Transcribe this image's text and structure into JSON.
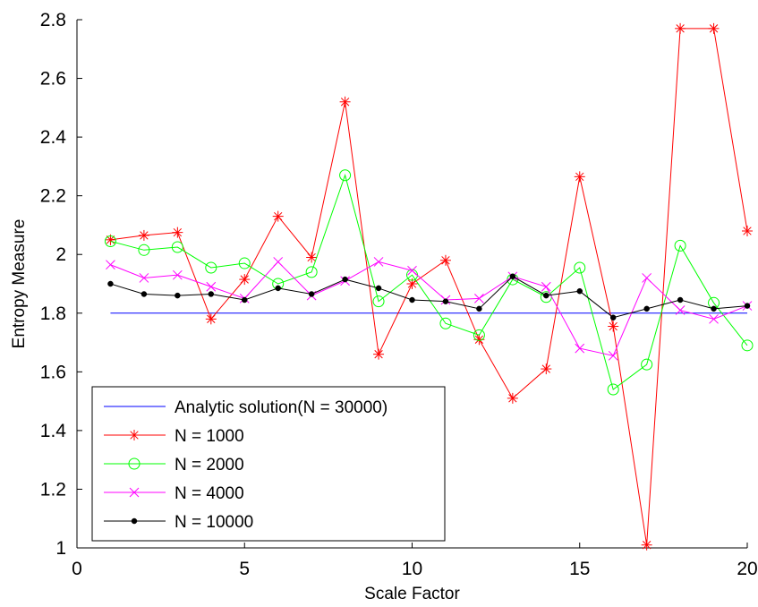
{
  "chart_data": {
    "type": "line",
    "title": "",
    "xlabel": "Scale Factor",
    "ylabel": "Entropy Measure",
    "xlim": [
      0,
      20
    ],
    "ylim": [
      1,
      2.8
    ],
    "x_ticks": [
      0,
      5,
      10,
      15,
      20
    ],
    "y_ticks": [
      1,
      1.2,
      1.4,
      1.6,
      1.8,
      2,
      2.2,
      2.4,
      2.6,
      2.8
    ],
    "x_tick_labels": [
      "0",
      "5",
      "10",
      "15",
      "20"
    ],
    "y_tick_labels": [
      "1",
      "1.2",
      "1.4",
      "1.6",
      "1.8",
      "2",
      "2.2",
      "2.4",
      "2.6",
      "2.8"
    ],
    "grid": false,
    "legend_position": "bottom-left",
    "x": [
      1,
      2,
      3,
      4,
      5,
      6,
      7,
      8,
      9,
      10,
      11,
      12,
      13,
      14,
      15,
      16,
      17,
      18,
      19,
      20
    ],
    "series": [
      {
        "name": "Analytic solution(N = 30000)",
        "color": "#0000ff",
        "marker": "none",
        "x": [
          1,
          20
        ],
        "values": [
          1.8,
          1.8
        ]
      },
      {
        "name": "N = 1000",
        "color": "#ff0000",
        "marker": "asterisk",
        "values": [
          2.05,
          2.065,
          2.075,
          1.78,
          1.915,
          2.13,
          1.99,
          2.52,
          1.66,
          1.9,
          1.98,
          1.71,
          1.51,
          1.61,
          2.265,
          1.755,
          1.01,
          2.77,
          2.77,
          2.08
        ]
      },
      {
        "name": "N = 2000",
        "color": "#00ff00",
        "marker": "circle",
        "values": [
          2.045,
          2.015,
          2.025,
          1.955,
          1.97,
          1.9,
          1.94,
          2.27,
          1.84,
          1.93,
          1.765,
          1.725,
          1.915,
          1.855,
          1.955,
          1.54,
          1.625,
          2.03,
          1.835,
          1.69
        ]
      },
      {
        "name": "N = 4000",
        "color": "#ff00ff",
        "marker": "x",
        "values": [
          1.965,
          1.92,
          1.93,
          1.89,
          1.85,
          1.975,
          1.86,
          1.91,
          1.975,
          1.945,
          1.845,
          1.85,
          1.925,
          1.89,
          1.68,
          1.655,
          1.92,
          1.81,
          1.78,
          1.825
        ]
      },
      {
        "name": "N = 10000",
        "color": "#000000",
        "marker": "dot",
        "values": [
          1.9,
          1.865,
          1.86,
          1.865,
          1.845,
          1.885,
          1.865,
          1.915,
          1.885,
          1.845,
          1.84,
          1.815,
          1.925,
          1.86,
          1.875,
          1.785,
          1.815,
          1.845,
          1.815,
          1.825
        ]
      }
    ]
  }
}
